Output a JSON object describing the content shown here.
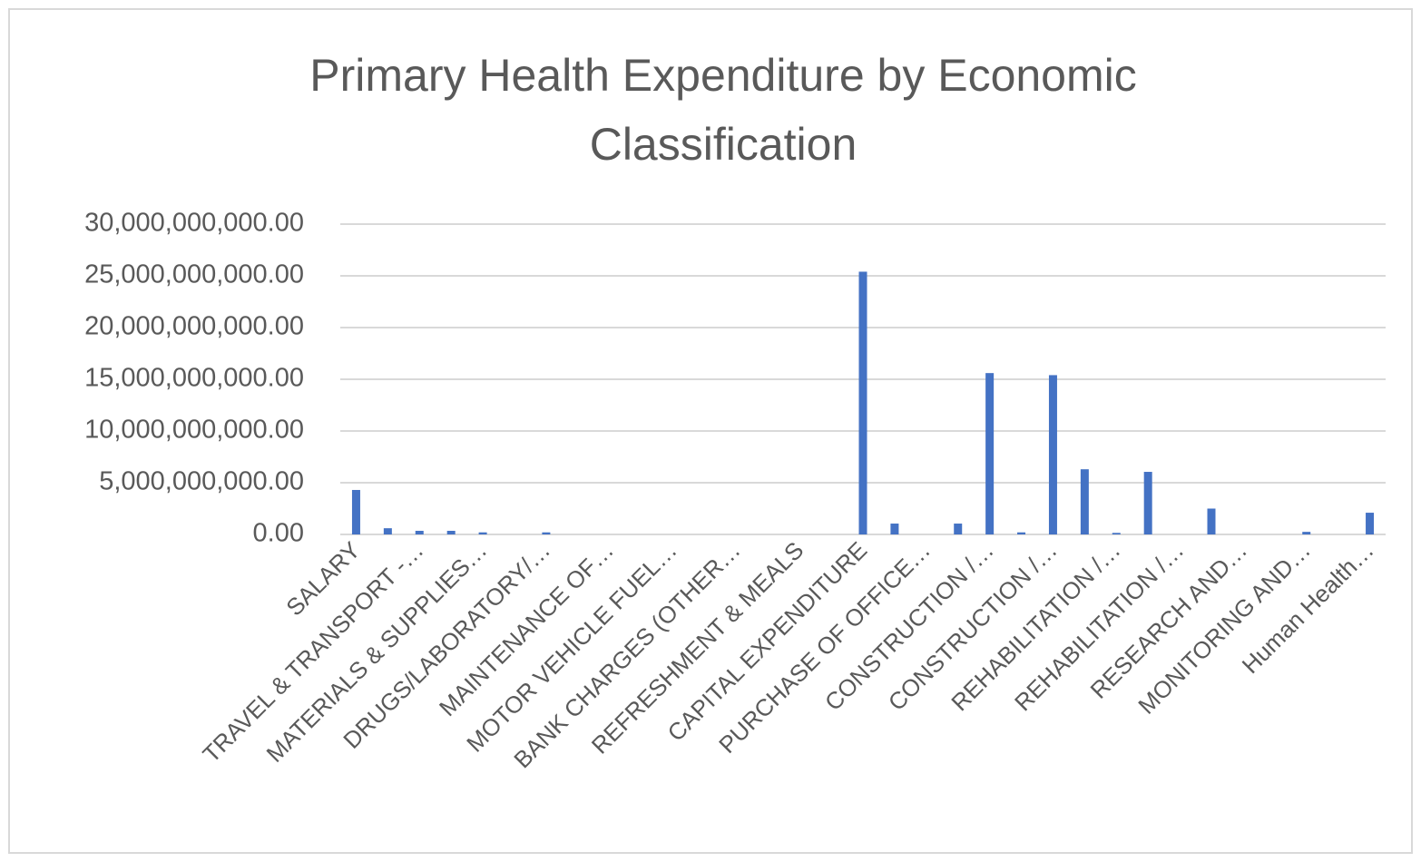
{
  "chart_data": {
    "type": "bar",
    "title": "Primary Health Expenditure by Economic Classification",
    "categories": [
      "SALARY",
      null,
      "TRAVEL & TRANSPORT -…",
      null,
      "MATERIALS & SUPPLIES…",
      null,
      "DRUGS/LABORATORY/…",
      null,
      "MAINTENANCE OF…",
      null,
      "MOTOR VEHICLE  FUEL…",
      null,
      "BANK CHARGES (OTHER…",
      null,
      "REFRESHMENT & MEALS",
      null,
      "CAPITAL EXPENDITURE",
      null,
      "PURCHASE OF OFFICE…",
      null,
      "CONSTRUCTION /…",
      null,
      "CONSTRUCTION /…",
      null,
      "REHABILITATION /…",
      null,
      "REHABILITATION /…",
      null,
      "RESEARCH AND…",
      null,
      "MONITORING AND…",
      null,
      "Human Health…"
    ],
    "values": [
      4300000000,
      600000000,
      350000000,
      350000000,
      200000000,
      0,
      200000000,
      0,
      0,
      0,
      0,
      0,
      0,
      0,
      0,
      0,
      25400000000,
      1050000000,
      0,
      1050000000,
      15600000000,
      200000000,
      15400000000,
      6300000000,
      150000000,
      6050000000,
      0,
      2500000000,
      0,
      0,
      250000000,
      0,
      2100000000
    ],
    "color": "#4472c4",
    "ylim": [
      0,
      30000000000
    ],
    "yticks": [
      {
        "value": 0,
        "label": "0.00"
      },
      {
        "value": 5000000000,
        "label": "5,000,000,000.00"
      },
      {
        "value": 10000000000,
        "label": "10,000,000,000.00"
      },
      {
        "value": 15000000000,
        "label": "15,000,000,000.00"
      },
      {
        "value": 20000000000,
        "label": "20,000,000,000.00"
      },
      {
        "value": 25000000000,
        "label": "25,000,000,000.00"
      },
      {
        "value": 30000000000,
        "label": "30,000,000,000.00"
      }
    ],
    "grid": true
  }
}
